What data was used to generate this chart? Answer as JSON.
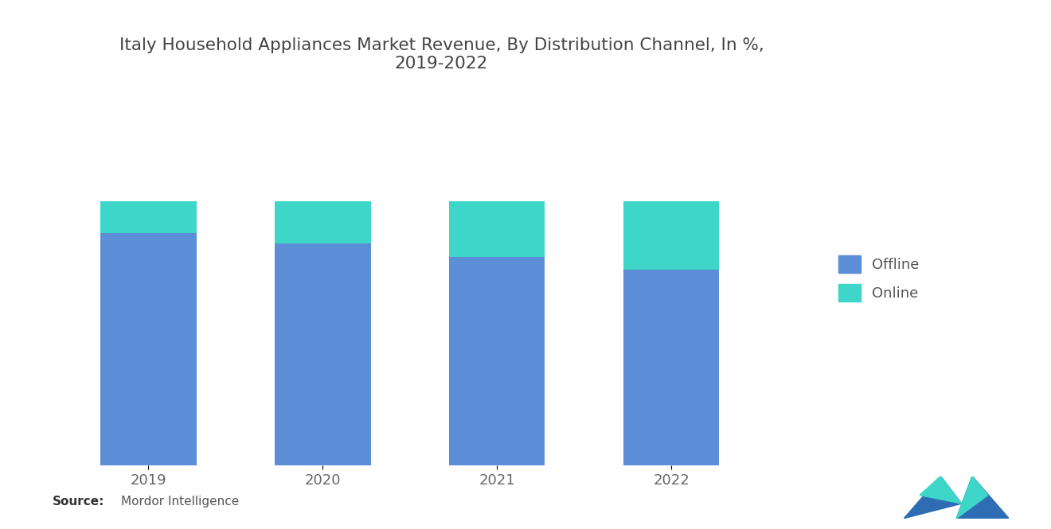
{
  "title": "Italy Household Appliances Market Revenue, By Distribution Channel, In %,\n2019-2022",
  "years": [
    "2019",
    "2020",
    "2021",
    "2022"
  ],
  "offline": [
    88,
    84,
    79,
    74
  ],
  "online": [
    12,
    16,
    21,
    26
  ],
  "color_offline": "#5b8ed6",
  "color_online": "#3dd6c8",
  "background_color": "#ffffff",
  "source_label": "Source:",
  "source_detail": "Mordor Intelligence",
  "title_fontsize": 15.5,
  "tick_fontsize": 13,
  "legend_fontsize": 13,
  "bar_width": 0.55,
  "ylim": [
    0,
    100
  ]
}
